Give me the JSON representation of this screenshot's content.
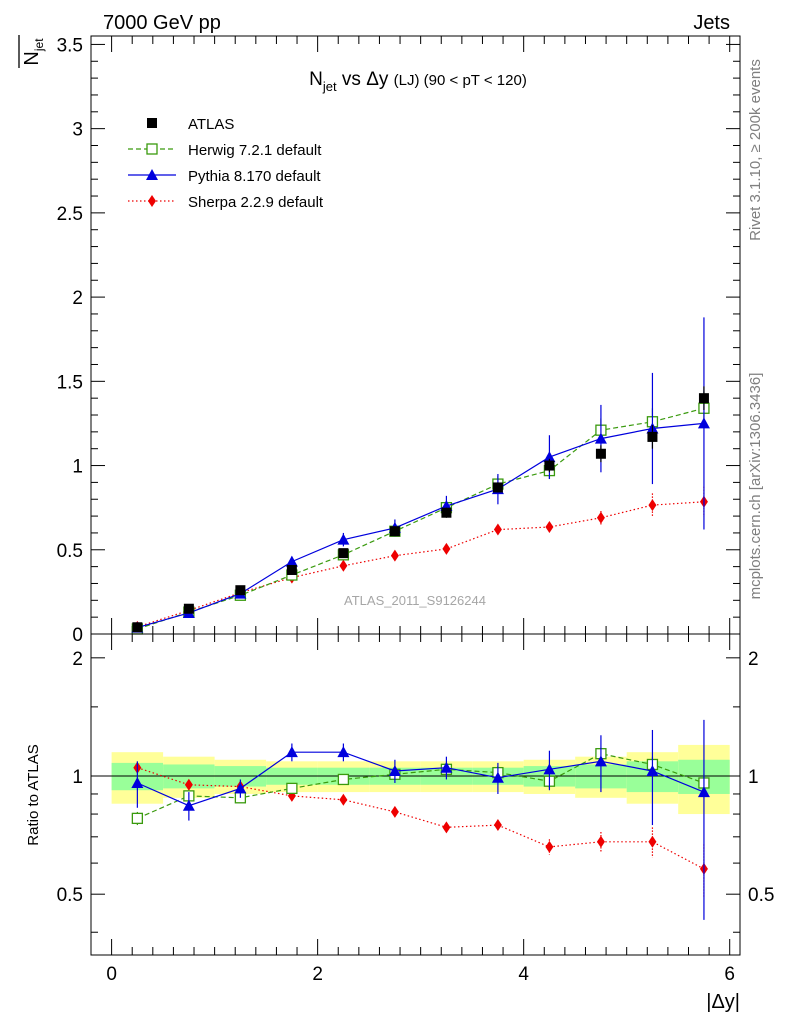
{
  "header": {
    "left": "7000 GeV pp",
    "right": "Jets"
  },
  "side_text": {
    "rivet": "Rivet 3.1.10, ≥ 200k events",
    "mcplots": "mcplots.cern.ch [arXiv:1306.3436]"
  },
  "colors": {
    "atlas": "#000000",
    "herwig": "#3a9a0e",
    "pythia": "#0000dd",
    "sherpa": "#ee0000",
    "band_outer": "#ffff99",
    "band_inner": "#99ff99"
  },
  "chart_data": [
    {
      "type": "scatter",
      "title": {
        "main": "N",
        "main_sub": "jet",
        "mid": " vs Δy ",
        "tag": "(LJ)",
        "range": " (90 < pT < 120)"
      },
      "ylabel": {
        "main": "N",
        "sub": "jet"
      },
      "xlim": [
        -0.2,
        6.1
      ],
      "ylim": [
        0,
        3.55
      ],
      "yticks": [
        0,
        0.5,
        1,
        1.5,
        2,
        2.5,
        3,
        3.5
      ],
      "ytick_labels": [
        "0",
        "0.5",
        "1",
        "1.5",
        "2",
        "2.5",
        "3",
        "3.5"
      ],
      "watermark": "ATLAS_2011_S9126244",
      "legend": [
        "ATLAS",
        "Herwig 7.2.1 default",
        "Pythia 8.170 default",
        "Sherpa 2.2.9 default"
      ],
      "x": [
        0.25,
        0.75,
        1.25,
        1.75,
        2.25,
        2.75,
        3.25,
        3.75,
        4.25,
        4.75,
        5.25,
        5.75
      ],
      "x_half_width": 0.25,
      "series": [
        {
          "name": "ATLAS",
          "values": [
            0.04,
            0.15,
            0.26,
            0.38,
            0.48,
            0.61,
            0.72,
            0.87,
            1.0,
            1.07,
            1.17,
            1.4
          ],
          "errors": [
            0.01,
            0.01,
            0.01,
            0.02,
            0.02,
            0.02,
            0.03,
            0.03,
            0.04,
            0.05,
            0.07,
            0.07
          ]
        },
        {
          "name": "Herwig 7.2.1 default",
          "values": [
            0.03,
            0.13,
            0.23,
            0.35,
            0.47,
            0.61,
            0.75,
            0.89,
            0.97,
            1.21,
            1.26,
            1.34
          ],
          "errors": [
            0.003,
            0.01,
            0.01,
            0.02,
            0.02,
            0.03,
            0.04,
            0.05,
            0.05,
            0.07,
            0.08,
            0.1
          ]
        },
        {
          "name": "Pythia 8.170 default",
          "values": [
            0.038,
            0.125,
            0.24,
            0.43,
            0.56,
            0.63,
            0.76,
            0.86,
            1.05,
            1.16,
            1.22,
            1.25
          ],
          "errors": [
            0.005,
            0.01,
            0.02,
            0.03,
            0.04,
            0.05,
            0.06,
            0.09,
            0.13,
            0.2,
            0.33,
            0.63
          ]
        },
        {
          "name": "Sherpa 2.2.9 default",
          "values": [
            0.042,
            0.14,
            0.245,
            0.335,
            0.405,
            0.465,
            0.505,
            0.62,
            0.635,
            0.69,
            0.765,
            0.785
          ],
          "errors": [
            0.003,
            0.005,
            0.008,
            0.01,
            0.015,
            0.02,
            0.02,
            0.025,
            0.03,
            0.04,
            0.07,
            0.09
          ]
        }
      ]
    },
    {
      "type": "scatter",
      "ylabel": "Ratio to ATLAS",
      "xlabel": "|Δy|",
      "xlim": [
        -0.2,
        6.1
      ],
      "ylim": [
        0.35,
        2.3
      ],
      "log_y": true,
      "xticks": [
        0,
        2,
        4,
        6
      ],
      "xtick_labels": [
        "0",
        "2",
        "4",
        "6"
      ],
      "yticks": [
        0.5,
        1,
        2
      ],
      "ytick_labels": [
        "0.5",
        "1",
        "2"
      ],
      "reference_line": 1,
      "x": [
        0.25,
        0.75,
        1.25,
        1.75,
        2.25,
        2.75,
        3.25,
        3.75,
        4.25,
        4.75,
        5.25,
        5.75
      ],
      "x_half_width": 0.25,
      "band_outer": [
        0.15,
        0.12,
        0.1,
        0.09,
        0.09,
        0.09,
        0.09,
        0.09,
        0.1,
        0.12,
        0.15,
        0.2
      ],
      "band_inner": [
        0.08,
        0.07,
        0.06,
        0.05,
        0.05,
        0.05,
        0.05,
        0.05,
        0.06,
        0.07,
        0.09,
        0.1
      ],
      "series": [
        {
          "name": "Herwig 7.2.1 default",
          "values": [
            0.78,
            0.89,
            0.88,
            0.93,
            0.98,
            1.01,
            1.04,
            1.02,
            0.97,
            1.14,
            1.07,
            0.96
          ],
          "errors": [
            0.03,
            0.02,
            0.02,
            0.02,
            0.02,
            0.02,
            0.03,
            0.04,
            0.04,
            0.04,
            0.05,
            0.05
          ]
        },
        {
          "name": "Pythia 8.170 default",
          "values": [
            0.96,
            0.84,
            0.93,
            1.15,
            1.15,
            1.03,
            1.05,
            0.99,
            1.04,
            1.09,
            1.03,
            0.91
          ],
          "errors": [
            0.13,
            0.07,
            0.05,
            0.06,
            0.06,
            0.07,
            0.07,
            0.09,
            0.12,
            0.18,
            0.28,
            0.48
          ]
        },
        {
          "name": "Sherpa 2.2.9 default",
          "values": [
            1.05,
            0.95,
            0.94,
            0.89,
            0.87,
            0.81,
            0.74,
            0.75,
            0.66,
            0.68,
            0.68,
            0.58
          ],
          "errors": [
            0.03,
            0.02,
            0.02,
            0.02,
            0.02,
            0.02,
            0.02,
            0.02,
            0.03,
            0.04,
            0.06,
            0.09
          ]
        }
      ]
    }
  ]
}
